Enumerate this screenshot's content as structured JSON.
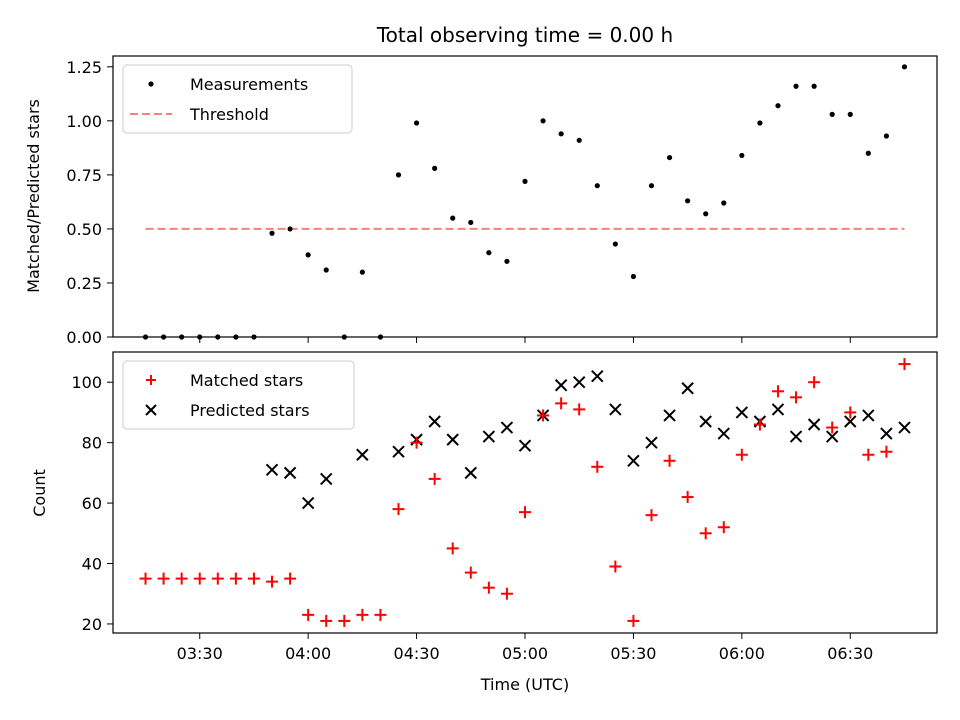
{
  "chart_data": [
    {
      "type": "scatter",
      "title": "Total observing time = 0.00 h",
      "ylabel": "Matched/Predicted stars",
      "ylim": [
        0,
        1.3
      ],
      "yticks": [
        "0.00",
        "0.25",
        "0.50",
        "0.75",
        "1.00",
        "1.25"
      ],
      "grid": false,
      "legend_position": "top-left",
      "series": [
        {
          "name": "Measurements",
          "style": "dot",
          "color": "#000000",
          "x": [
            "03:15",
            "03:20",
            "03:25",
            "03:30",
            "03:35",
            "03:40",
            "03:45",
            "03:50",
            "03:55",
            "04:00",
            "04:05",
            "04:10",
            "04:15",
            "04:20",
            "04:25",
            "04:30",
            "04:35",
            "04:40",
            "04:45",
            "04:50",
            "04:55",
            "05:00",
            "05:05",
            "05:10",
            "05:15",
            "05:20",
            "05:25",
            "05:30",
            "05:35",
            "05:40",
            "05:45",
            "05:50",
            "05:55",
            "06:00",
            "06:05",
            "06:10",
            "06:15",
            "06:20",
            "06:25",
            "06:30",
            "06:35",
            "06:40",
            "06:45"
          ],
          "y": [
            0,
            0,
            0,
            0,
            0,
            0,
            0,
            0.48,
            0.5,
            0.38,
            0.31,
            0,
            0.3,
            0,
            0.75,
            0.99,
            0.78,
            0.55,
            0.53,
            0.39,
            0.35,
            0.72,
            1.0,
            0.94,
            0.91,
            0.7,
            0.43,
            0.28,
            0.7,
            0.83,
            0.63,
            0.57,
            0.62,
            0.84,
            0.99,
            1.07,
            1.16,
            1.16,
            1.03,
            1.03,
            0.85,
            0.93,
            1.25
          ]
        },
        {
          "name": "Threshold",
          "style": "dashed-line",
          "color": "#ff7f7f",
          "x": [
            "03:15",
            "06:45"
          ],
          "y": [
            0.5,
            0.5
          ]
        }
      ]
    },
    {
      "type": "scatter",
      "xlabel": "Time (UTC)",
      "ylabel": "Count",
      "ylim": [
        17,
        110
      ],
      "yticks": [
        "20",
        "40",
        "60",
        "80",
        "100"
      ],
      "xticks": [
        "03:30",
        "04:00",
        "04:30",
        "05:00",
        "05:30",
        "06:00",
        "06:30"
      ],
      "xlim": [
        "03:06",
        "06:54"
      ],
      "grid": false,
      "legend_position": "top-left",
      "series": [
        {
          "name": "Matched stars",
          "marker": "plus",
          "color": "#ff0000",
          "x": [
            "03:15",
            "03:20",
            "03:25",
            "03:30",
            "03:35",
            "03:40",
            "03:45",
            "03:50",
            "03:55",
            "04:00",
            "04:05",
            "04:10",
            "04:15",
            "04:20",
            "04:25",
            "04:30",
            "04:35",
            "04:40",
            "04:45",
            "04:50",
            "04:55",
            "05:00",
            "05:05",
            "05:10",
            "05:15",
            "05:20",
            "05:25",
            "05:30",
            "05:35",
            "05:40",
            "05:45",
            "05:50",
            "05:55",
            "06:00",
            "06:05",
            "06:10",
            "06:15",
            "06:20",
            "06:25",
            "06:30",
            "06:35",
            "06:40",
            "06:45"
          ],
          "y": [
            35,
            35,
            35,
            35,
            35,
            35,
            35,
            34,
            35,
            23,
            21,
            21,
            23,
            23,
            58,
            80,
            68,
            45,
            37,
            32,
            30,
            57,
            89,
            93,
            91,
            72,
            39,
            21,
            56,
            74,
            62,
            50,
            52,
            76,
            86,
            97,
            95,
            100,
            85,
            90,
            76,
            77,
            106
          ]
        },
        {
          "name": "Predicted stars",
          "marker": "x",
          "color": "#000000",
          "x": [
            "03:50",
            "03:55",
            "04:00",
            "04:05",
            "04:15",
            "04:25",
            "04:30",
            "04:35",
            "04:40",
            "04:45",
            "04:50",
            "04:55",
            "05:00",
            "05:05",
            "05:10",
            "05:15",
            "05:20",
            "05:25",
            "05:30",
            "05:35",
            "05:40",
            "05:45",
            "05:50",
            "05:55",
            "06:00",
            "06:05",
            "06:10",
            "06:15",
            "06:20",
            "06:25",
            "06:30",
            "06:35",
            "06:40",
            "06:45"
          ],
          "y": [
            71,
            70,
            60,
            68,
            76,
            77,
            81,
            87,
            81,
            70,
            82,
            85,
            79,
            89,
            99,
            100,
            102,
            91,
            74,
            80,
            89,
            98,
            87,
            83,
            90,
            87,
            91,
            82,
            86,
            82,
            87,
            89,
            83,
            85
          ]
        }
      ]
    }
  ]
}
